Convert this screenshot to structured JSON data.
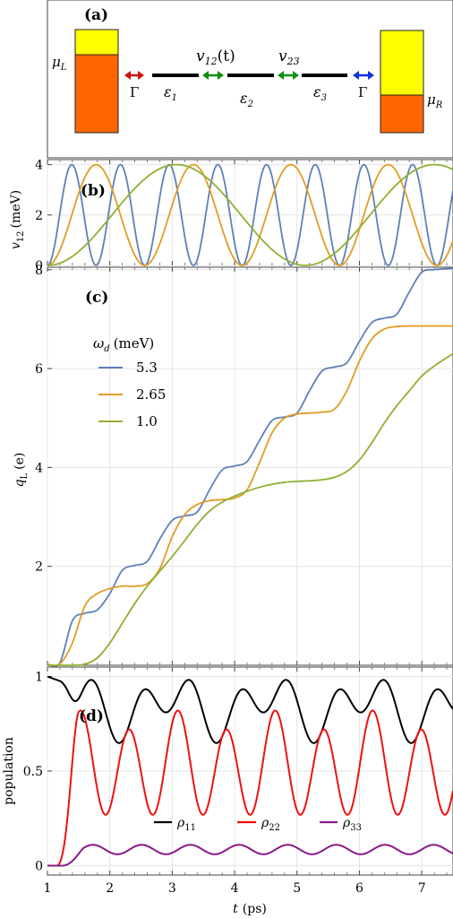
{
  "panel_a": {
    "label": "(a)",
    "mu_L": "μ",
    "mu_L_sub": "L",
    "mu_R": "μ",
    "mu_R_sub": "R",
    "gamma_left": "Γ",
    "gamma_right": "Γ",
    "v12": "v",
    "v12_sub": "12",
    "v12_arg": "(t)",
    "v23": "v",
    "v23_sub": "23",
    "eps1": "ε",
    "eps1_sub": "1",
    "eps2": "ε",
    "eps2_sub": "2",
    "eps3": "ε",
    "eps3_sub": "3",
    "colors": {
      "yellow": "#ffff00",
      "orange": "#ff6600",
      "red_arrow": "#d01010",
      "green_arrow": "#109010",
      "blue_arrow": "#1030e0"
    }
  },
  "chart_data": [
    {
      "panel": "(b)",
      "type": "line",
      "ylabel": "v",
      "ylabel_sub": "12",
      "ylabel_unit": "(meV)",
      "xlim": [
        1,
        7.5
      ],
      "ylim": [
        0,
        4.2
      ],
      "yticks": [
        0,
        2,
        4
      ],
      "grid": true,
      "series": [
        {
          "name": "5.3",
          "color": "#5e81b5",
          "omega_meV": 5.3,
          "amplitude_meV": 4.0,
          "t0_ps": 1.0
        },
        {
          "name": "2.65",
          "color": "#e19c24",
          "omega_meV": 2.65,
          "amplitude_meV": 4.0,
          "t0_ps": 1.0
        },
        {
          "name": "1.0",
          "color": "#8fb032",
          "omega_meV": 1.0,
          "amplitude_meV": 4.0,
          "t0_ps": 1.0
        }
      ]
    },
    {
      "panel": "(c)",
      "type": "line",
      "ylabel": "q",
      "ylabel_sub": "L",
      "ylabel_unit": "(e)",
      "xlim": [
        1,
        7.5
      ],
      "ylim": [
        0,
        8.05
      ],
      "yticks": [
        2,
        4,
        6,
        8
      ],
      "grid": true,
      "legend_title": "ω",
      "legend_title_sub": "d",
      "legend_title_unit": "(meV)",
      "legend_position": "upper-left",
      "series": [
        {
          "name": "5.3",
          "color": "#5e81b5",
          "x": [
            1.0,
            1.2,
            1.4,
            1.6,
            1.8,
            2.0,
            2.2,
            2.4,
            2.6,
            2.8,
            3.0,
            3.2,
            3.4,
            3.6,
            3.8,
            4.0,
            4.2,
            4.4,
            4.6,
            4.8,
            5.0,
            5.2,
            5.4,
            5.6,
            5.8,
            6.0,
            6.2,
            6.4,
            6.6,
            6.8,
            7.0,
            7.2,
            7.4,
            7.5
          ],
          "y": [
            0.02,
            0.05,
            0.9,
            1.05,
            1.12,
            1.45,
            1.92,
            2.02,
            2.1,
            2.55,
            2.93,
            3.02,
            3.1,
            3.55,
            3.95,
            4.03,
            4.12,
            4.55,
            4.95,
            5.02,
            5.1,
            5.55,
            5.95,
            6.03,
            6.12,
            6.55,
            6.93,
            7.02,
            7.1,
            7.55,
            7.95,
            8.0,
            8.02,
            8.02
          ]
        },
        {
          "name": "2.65",
          "color": "#e19c24",
          "x": [
            1.0,
            1.2,
            1.4,
            1.6,
            1.8,
            2.0,
            2.2,
            2.4,
            2.6,
            2.8,
            3.0,
            3.2,
            3.4,
            3.6,
            3.8,
            4.0,
            4.2,
            4.4,
            4.6,
            4.8,
            5.0,
            5.2,
            5.4,
            5.6,
            5.8,
            6.0,
            6.2,
            6.4,
            6.6,
            6.8,
            7.0,
            7.2,
            7.4,
            7.5
          ],
          "y": [
            0.02,
            0.03,
            0.45,
            1.2,
            1.45,
            1.55,
            1.6,
            1.6,
            1.65,
            1.95,
            2.6,
            3.05,
            3.25,
            3.33,
            3.35,
            3.38,
            3.55,
            4.1,
            4.7,
            5.0,
            5.08,
            5.1,
            5.12,
            5.18,
            5.55,
            6.15,
            6.6,
            6.8,
            6.85,
            6.86,
            6.86,
            6.86,
            6.86,
            6.86
          ]
        },
        {
          "name": "1.0",
          "color": "#8fb032",
          "x": [
            1.0,
            1.2,
            1.4,
            1.6,
            1.8,
            2.0,
            2.2,
            2.4,
            2.6,
            2.8,
            3.0,
            3.2,
            3.4,
            3.6,
            3.8,
            4.0,
            4.2,
            4.4,
            4.6,
            4.8,
            5.0,
            5.2,
            5.4,
            5.6,
            5.8,
            6.0,
            6.2,
            6.4,
            6.6,
            6.8,
            7.0,
            7.2,
            7.4,
            7.5
          ],
          "y": [
            0.0,
            0.0,
            0.0,
            0.02,
            0.15,
            0.45,
            0.85,
            1.25,
            1.6,
            1.9,
            2.2,
            2.52,
            2.85,
            3.12,
            3.3,
            3.42,
            3.52,
            3.6,
            3.66,
            3.7,
            3.72,
            3.73,
            3.75,
            3.8,
            3.92,
            4.15,
            4.5,
            4.9,
            5.25,
            5.55,
            5.85,
            6.05,
            6.22,
            6.3
          ]
        }
      ]
    },
    {
      "panel": "(d)",
      "type": "line",
      "xlabel": "t",
      "xlabel_unit": "(ps)",
      "ylabel": "population",
      "xlim": [
        1,
        7.5
      ],
      "ylim": [
        -0.05,
        1.05
      ],
      "xticks": [
        1,
        2,
        3,
        4,
        5,
        6,
        7
      ],
      "yticks": [
        0,
        0.5,
        1
      ],
      "ytick_labels": [
        "0",
        "0.5",
        "1"
      ],
      "grid": true,
      "legend_position": "bottom-center",
      "series": [
        {
          "name": "ρ",
          "name_sub": "11",
          "color": "#000000",
          "kind": "rho11"
        },
        {
          "name": "ρ",
          "name_sub": "22",
          "color": "#ee1111",
          "kind": "rho22"
        },
        {
          "name": "ρ",
          "name_sub": "33",
          "color": "#881888",
          "kind": "rho33"
        }
      ]
    }
  ]
}
